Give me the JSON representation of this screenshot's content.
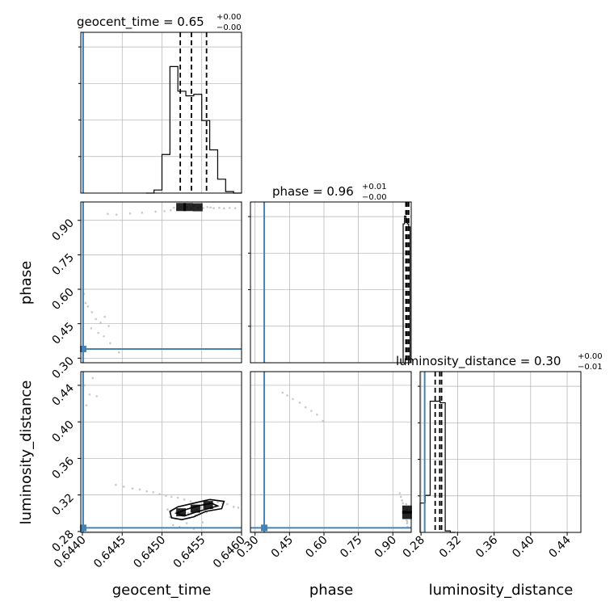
{
  "chart_data": {
    "type": "scatter",
    "layout": "corner plot",
    "parameters": [
      "geocent_time",
      "phase",
      "luminosity_distance"
    ],
    "axes": {
      "geocent_time": {
        "label": "geocent_time",
        "range": [
          0.64398,
          0.646
        ],
        "ticks": [
          0.644,
          0.6445,
          0.645,
          0.6455,
          0.646
        ],
        "tick_labels": [
          "0.6440",
          "0.6445",
          "0.6450",
          "0.6455",
          "0.6460"
        ]
      },
      "phase": {
        "label": "phase",
        "range": [
          0.28,
          0.98
        ],
        "ticks": [
          0.3,
          0.45,
          0.6,
          0.75,
          0.9
        ],
        "tick_labels": [
          "0.30",
          "0.45",
          "0.60",
          "0.75",
          "0.90"
        ]
      },
      "luminosity_distance": {
        "label": "luminosity_distance",
        "range": [
          0.279,
          0.455
        ],
        "ticks": [
          0.28,
          0.32,
          0.36,
          0.4,
          0.44
        ],
        "tick_labels": [
          "0.28",
          "0.32",
          "0.36",
          "0.40",
          "0.44"
        ]
      }
    },
    "titles": [
      {
        "param": "geocent_time",
        "text": "geocent_time = 0.65",
        "plus": "+0.00",
        "minus": "−0.00"
      },
      {
        "param": "phase",
        "text": "phase = 0.96",
        "plus": "+0.01",
        "minus": "−0.00"
      },
      {
        "param": "luminosity_distance",
        "text": "luminosity_distance = 0.30",
        "plus": "+0.00",
        "minus": "−0.01"
      }
    ],
    "truths": {
      "geocent_time": 0.64401,
      "phase": 0.34,
      "luminosity_distance": 0.284
    },
    "histograms": {
      "geocent_time": {
        "edges": [
          0.6448,
          0.6449,
          0.645,
          0.6451,
          0.6452,
          0.6453,
          0.6454,
          0.6455,
          0.6456,
          0.6457,
          0.6458,
          0.6459,
          0.646
        ],
        "counts": [
          0.0,
          0.02,
          0.25,
          0.82,
          0.66,
          0.63,
          0.64,
          0.47,
          0.28,
          0.09,
          0.01,
          0.0
        ]
      },
      "phase": {
        "edges": [
          0.945,
          0.951,
          0.957,
          0.963,
          0.969,
          0.975
        ],
        "counts": [
          0.9,
          0.95,
          0.92,
          0.9,
          0.88
        ]
      },
      "luminosity_distance": {
        "edges": [
          0.279,
          0.2845,
          0.29,
          0.2955,
          0.301,
          0.3065,
          0.312,
          0.3175
        ],
        "counts": [
          0.19,
          0.24,
          0.85,
          0.85,
          0.84,
          0.01,
          0.0
        ]
      }
    },
    "quantiles": {
      "geocent_time": [
        0.64523,
        0.64537,
        0.64556
      ],
      "phase": [
        0.957,
        0.962,
        0.969
      ],
      "luminosity_distance": [
        0.2955,
        0.3005,
        0.3025
      ]
    },
    "scatter": {
      "phase_vs_geocent_time": [
        [
          0.64432,
          0.928
        ],
        [
          0.64443,
          0.925
        ],
        [
          0.6446,
          0.93
        ],
        [
          0.64475,
          0.933
        ],
        [
          0.64492,
          0.938
        ],
        [
          0.64503,
          0.94
        ],
        [
          0.64511,
          0.944
        ],
        [
          0.64515,
          0.955
        ],
        [
          0.64519,
          0.95
        ],
        [
          0.64524,
          0.958
        ],
        [
          0.64528,
          0.954
        ],
        [
          0.64531,
          0.957
        ],
        [
          0.64536,
          0.953
        ],
        [
          0.6454,
          0.962
        ],
        [
          0.64545,
          0.956
        ],
        [
          0.64549,
          0.959
        ],
        [
          0.64552,
          0.954
        ],
        [
          0.64557,
          0.958
        ],
        [
          0.64561,
          0.956
        ],
        [
          0.64565,
          0.953
        ],
        [
          0.64572,
          0.955
        ],
        [
          0.64578,
          0.952
        ],
        [
          0.64585,
          0.954
        ],
        [
          0.64592,
          0.953
        ],
        [
          0.64404,
          0.54
        ],
        [
          0.64407,
          0.525
        ],
        [
          0.64412,
          0.5
        ],
        [
          0.64417,
          0.47
        ],
        [
          0.64423,
          0.455
        ],
        [
          0.64428,
          0.48
        ],
        [
          0.64433,
          0.44
        ],
        [
          0.6442,
          0.41
        ],
        [
          0.64427,
          0.395
        ],
        [
          0.64435,
          0.365
        ],
        [
          0.64446,
          0.325
        ],
        [
          0.64402,
          0.58
        ],
        [
          0.64411,
          0.43
        ]
      ],
      "luminosity_distance_vs_geocent_time": [
        [
          0.64403,
          0.44
        ],
        [
          0.64409,
          0.43
        ],
        [
          0.64413,
          0.448
        ],
        [
          0.64418,
          0.428
        ],
        [
          0.64405,
          0.418
        ],
        [
          0.64442,
          0.331
        ],
        [
          0.64452,
          0.329
        ],
        [
          0.64463,
          0.327
        ],
        [
          0.64472,
          0.326
        ],
        [
          0.64481,
          0.324
        ],
        [
          0.64489,
          0.323
        ],
        [
          0.64497,
          0.321
        ],
        [
          0.64505,
          0.319
        ],
        [
          0.64512,
          0.318
        ],
        [
          0.6452,
          0.317
        ],
        [
          0.64528,
          0.315
        ],
        [
          0.64536,
          0.313
        ],
        [
          0.64507,
          0.304
        ],
        [
          0.64512,
          0.302
        ],
        [
          0.64518,
          0.301
        ],
        [
          0.64523,
          0.3
        ],
        [
          0.64528,
          0.299
        ],
        [
          0.64533,
          0.3
        ],
        [
          0.64538,
          0.302
        ],
        [
          0.64544,
          0.304
        ],
        [
          0.64549,
          0.306
        ],
        [
          0.64554,
          0.308
        ],
        [
          0.64559,
          0.31
        ],
        [
          0.64564,
          0.311
        ],
        [
          0.6457,
          0.312
        ],
        [
          0.64576,
          0.311
        ],
        [
          0.64582,
          0.31
        ],
        [
          0.6459,
          0.307
        ],
        [
          0.64596,
          0.306
        ],
        [
          0.6451,
          0.296
        ],
        [
          0.64517,
          0.294
        ],
        [
          0.64526,
          0.297
        ],
        [
          0.64542,
          0.298
        ],
        [
          0.64556,
          0.301
        ],
        [
          0.64514,
          0.287
        ],
        [
          0.64522,
          0.285
        ],
        [
          0.64531,
          0.289
        ],
        [
          0.6454,
          0.283
        ],
        [
          0.64551,
          0.29
        ]
      ],
      "luminosity_distance_vs_phase": [
        [
          0.42,
          0.432
        ],
        [
          0.44,
          0.429
        ],
        [
          0.465,
          0.425
        ],
        [
          0.495,
          0.421
        ],
        [
          0.52,
          0.416
        ],
        [
          0.545,
          0.412
        ],
        [
          0.57,
          0.408
        ],
        [
          0.595,
          0.401
        ],
        [
          0.93,
          0.322
        ],
        [
          0.935,
          0.318
        ],
        [
          0.94,
          0.314
        ],
        [
          0.944,
          0.311
        ],
        [
          0.948,
          0.307
        ],
        [
          0.951,
          0.303
        ],
        [
          0.954,
          0.3
        ],
        [
          0.957,
          0.296
        ],
        [
          0.96,
          0.292
        ],
        [
          0.962,
          0.289
        ],
        [
          0.964,
          0.285
        ],
        [
          0.958,
          0.31
        ],
        [
          0.962,
          0.304
        ],
        [
          0.966,
          0.299
        ],
        [
          0.955,
          0.295
        ],
        [
          0.963,
          0.291
        ]
      ]
    },
    "density_blobs": {
      "phase_vs_geocent_time": [
        {
          "x": 0.64524,
          "y": 0.958
        },
        {
          "x": 0.64533,
          "y": 0.958
        },
        {
          "x": 0.64545,
          "y": 0.957
        }
      ],
      "luminosity_distance_vs_geocent_time": [
        {
          "x": 0.64524,
          "y": 0.301
        },
        {
          "x": 0.64542,
          "y": 0.305
        },
        {
          "x": 0.64558,
          "y": 0.309
        }
      ],
      "luminosity_distance_vs_phase": [
        {
          "x": 0.962,
          "y": 0.304
        },
        {
          "x": 0.962,
          "y": 0.298
        }
      ]
    },
    "contours": {
      "luminosity_distance_vs_geocent_time": [
        [
          [
            0.6451,
            0.302
          ],
          [
            0.6452,
            0.307
          ],
          [
            0.6454,
            0.311
          ],
          [
            0.6456,
            0.315
          ],
          [
            0.64578,
            0.313
          ],
          [
            0.64575,
            0.305
          ],
          [
            0.64555,
            0.302
          ],
          [
            0.6454,
            0.296
          ],
          [
            0.64525,
            0.293
          ],
          [
            0.64512,
            0.295
          ],
          [
            0.6451,
            0.302
          ]
        ],
        [
          [
            0.64518,
            0.3
          ],
          [
            0.6453,
            0.304
          ],
          [
            0.64545,
            0.308
          ],
          [
            0.64562,
            0.311
          ],
          [
            0.6457,
            0.308
          ],
          [
            0.64558,
            0.305
          ],
          [
            0.64542,
            0.301
          ],
          [
            0.64528,
            0.297
          ],
          [
            0.64518,
            0.3
          ]
        ]
      ]
    },
    "grid": true
  },
  "colors": {
    "truth": "#4682b4",
    "hist": "#000000",
    "grid": "#b0b0b0",
    "scatter": "#bdbdbd",
    "density": "#000000"
  }
}
